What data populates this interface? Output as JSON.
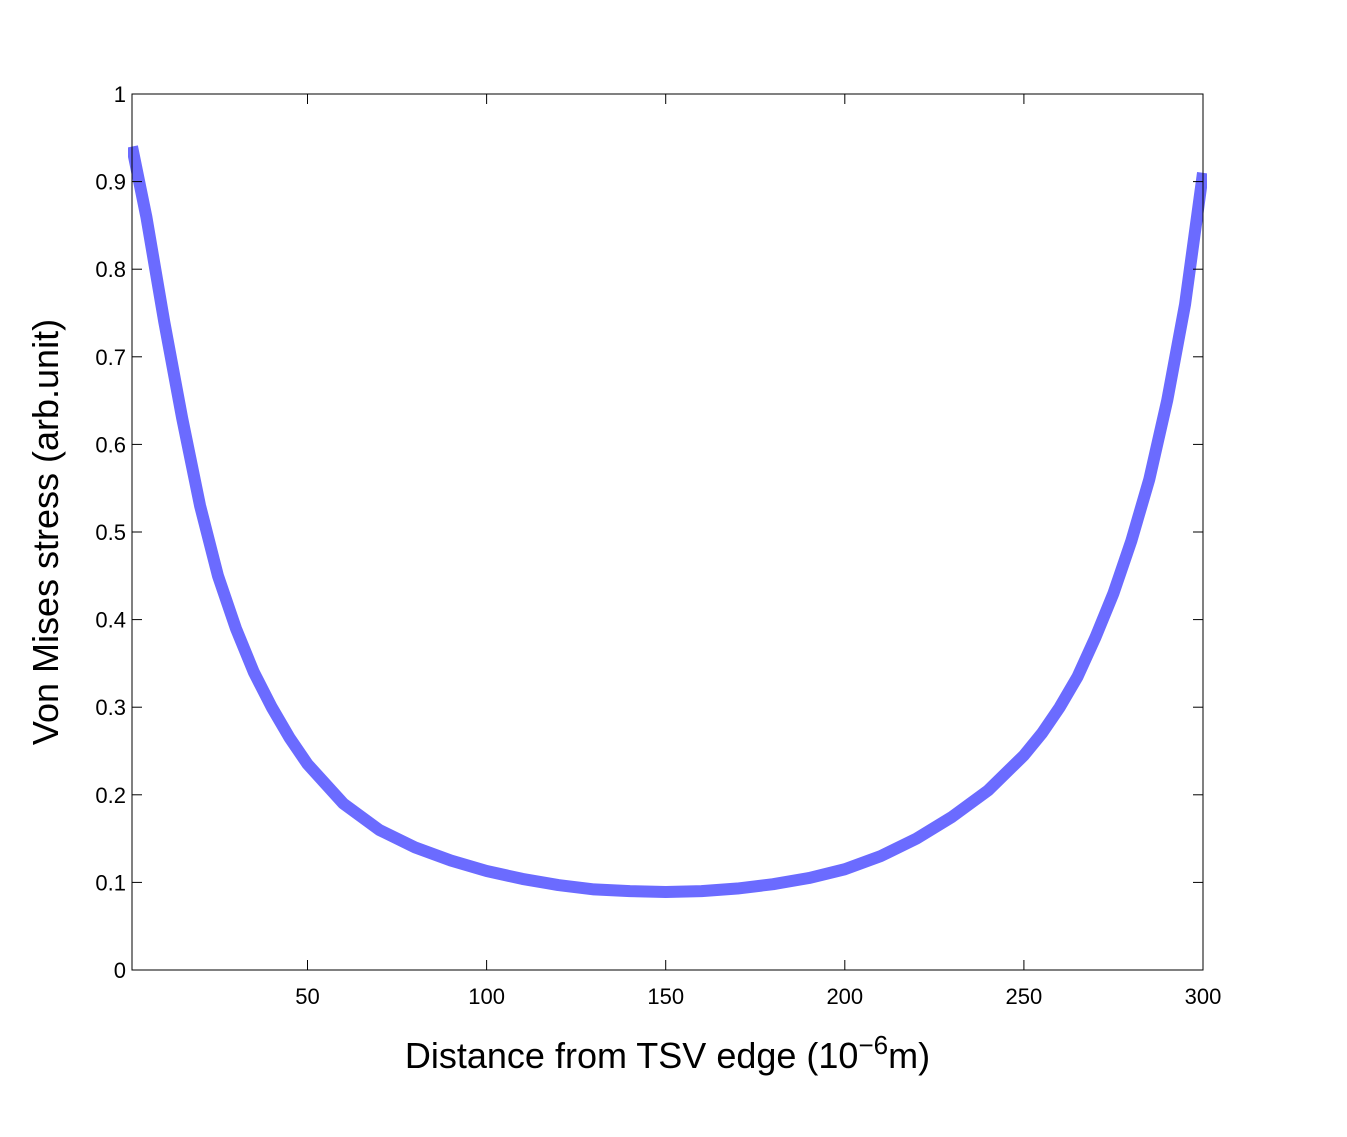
{
  "chart_data": {
    "type": "line",
    "title": "",
    "xlabel": "Distance from TSV edge (10",
    "xlabel_exponent": "−6",
    "xlabel_suffix": "m)",
    "ylabel": "Von Mises stress (arb.unit)",
    "xlim": [
      1,
      300
    ],
    "ylim": [
      0,
      1
    ],
    "x_ticks": [
      50,
      100,
      150,
      200,
      250,
      300
    ],
    "y_ticks": [
      0,
      0.1,
      0.2,
      0.3,
      0.4,
      0.5,
      0.6,
      0.7,
      0.8,
      0.9,
      1
    ],
    "x_tick_labels": [
      "50",
      "100",
      "150",
      "200",
      "250",
      "300"
    ],
    "y_tick_labels": [
      "0",
      "0.1",
      "0.2",
      "0.3",
      "0.4",
      "0.5",
      "0.6",
      "0.7",
      "0.8",
      "0.9",
      "1"
    ],
    "grid": false,
    "series": [
      {
        "name": "Von Mises stress",
        "color": "#6b6bff",
        "x": [
          1,
          5,
          10,
          15,
          20,
          25,
          30,
          35,
          40,
          45,
          50,
          60,
          70,
          80,
          90,
          100,
          110,
          120,
          130,
          140,
          150,
          160,
          170,
          180,
          190,
          200,
          210,
          220,
          230,
          240,
          250,
          255,
          260,
          265,
          270,
          275,
          280,
          285,
          290,
          295,
          300
        ],
        "y": [
          0.94,
          0.86,
          0.74,
          0.63,
          0.53,
          0.45,
          0.39,
          0.34,
          0.3,
          0.265,
          0.235,
          0.19,
          0.16,
          0.14,
          0.125,
          0.113,
          0.104,
          0.097,
          0.092,
          0.09,
          0.089,
          0.09,
          0.093,
          0.098,
          0.105,
          0.115,
          0.13,
          0.15,
          0.175,
          0.205,
          0.245,
          0.27,
          0.3,
          0.335,
          0.38,
          0.43,
          0.49,
          0.56,
          0.65,
          0.76,
          0.91
        ]
      }
    ]
  }
}
